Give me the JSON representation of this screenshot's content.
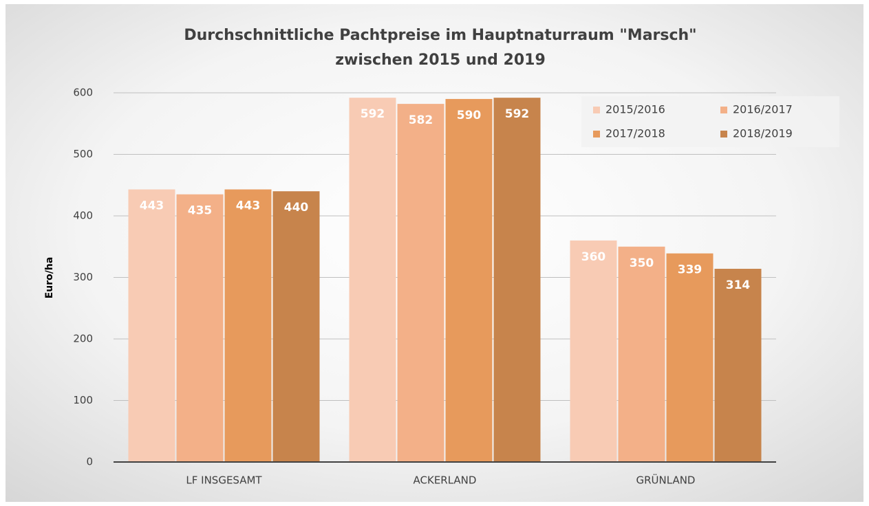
{
  "chart_data": {
    "type": "bar",
    "title": [
      "Durchschnittliche Pachtpreise im Hauptnaturraum \"Marsch\"",
      "zwischen 2015 und 2019"
    ],
    "y_label": "Euro/ha",
    "categories": [
      "LF INSGESAMT",
      "ACKERLAND",
      "GRÜNLAND"
    ],
    "series": [
      {
        "name": "2015/2016",
        "color": "#f8cbb4",
        "values": [
          443,
          592,
          360
        ]
      },
      {
        "name": "2016/2017",
        "color": "#f3b088",
        "values": [
          435,
          582,
          350
        ]
      },
      {
        "name": "2017/2018",
        "color": "#e79a5c",
        "values": [
          443,
          590,
          339
        ]
      },
      {
        "name": "2018/2019",
        "color": "#c7844c",
        "values": [
          440,
          592,
          314
        ]
      }
    ],
    "ylim": [
      0,
      600
    ],
    "yticks": [
      0,
      100,
      200,
      300,
      400,
      500,
      600
    ],
    "grid": true,
    "legend": "top-right"
  }
}
